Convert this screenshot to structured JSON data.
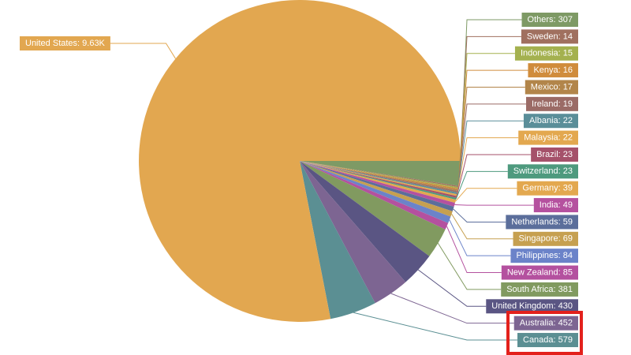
{
  "chart_data": {
    "type": "pie",
    "values": [
      307,
      14,
      15,
      16,
      17,
      19,
      22,
      22,
      23,
      23,
      39,
      49,
      59,
      69,
      84,
      85,
      381,
      430,
      452,
      579,
      9630
    ],
    "value_labels": [
      "Others: 307",
      "Sweden: 14",
      "Indonesia: 15",
      "Kenya: 16",
      "Mexico: 17",
      "Ireland: 19",
      "Albania: 22",
      "Malaysia: 22",
      "Brazil: 23",
      "Switzerland: 23",
      "Germany: 39",
      "India: 49",
      "Netherlands: 59",
      "Singapore: 69",
      "Philippines: 84",
      "New Zealand: 85",
      "South Africa: 381",
      "United Kingdom: 430",
      "Australia: 452",
      "Canada: 579",
      "United States: 9.63K"
    ],
    "colors": [
      "#7e9a65",
      "#a0705f",
      "#a4b14f",
      "#d08c3c",
      "#b2854a",
      "#9b6b66",
      "#5a8e99",
      "#e3a84f",
      "#a5516a",
      "#4e9a7e",
      "#e3a84f",
      "#b5519f",
      "#5b6e9b",
      "#c6a050",
      "#6b83c9",
      "#b4519f",
      "#819a60",
      "#5a5583",
      "#7d6592",
      "#5b8f93",
      "#e2a750"
    ]
  }
}
